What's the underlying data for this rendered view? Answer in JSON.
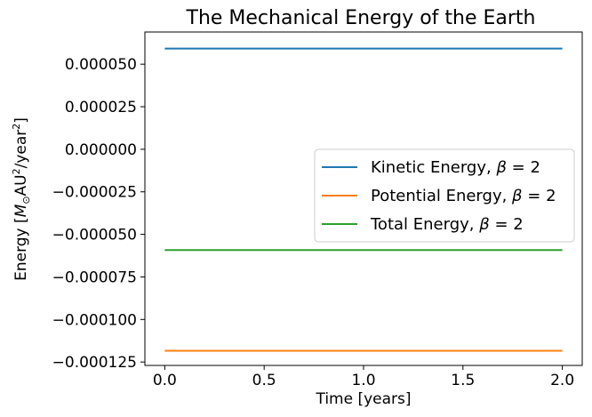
{
  "chart_data": {
    "type": "line",
    "title": "The Mechanical Energy of the Earth",
    "xlabel": "Time [years]",
    "ylabel_parts": {
      "prefix": "Energy [",
      "msym": "M",
      "msub": "⊙",
      "unit1": "AU",
      "sup1": "2",
      "unit2": "/year",
      "sup2": "2",
      "suffix": "]"
    },
    "xlim": [
      -0.1,
      2.1
    ],
    "ylim": [
      -0.000127,
      6.89e-05
    ],
    "xticks": [
      0.0,
      0.5,
      1.0,
      1.5,
      2.0
    ],
    "xtick_labels": [
      "0.0",
      "0.5",
      "1.0",
      "1.5",
      "2.0"
    ],
    "yticks": [
      5e-05,
      2.5e-05,
      0.0,
      -2.5e-05,
      -5e-05,
      -7.5e-05,
      -0.0001,
      -0.000125
    ],
    "ytick_labels": [
      "0.000050",
      "0.000025",
      "0.000000",
      "−0.000025",
      "−0.000050",
      "−0.000075",
      "−0.000100",
      "−0.000125"
    ],
    "grid": false,
    "legend_position": "center-right",
    "series": [
      {
        "name": "Kinetic Energy, β = 2",
        "name_text": "Kinetic Energy, ",
        "color": "#1f77b4",
        "x": [
          0.0,
          2.0
        ],
        "y": [
          5.92e-05,
          5.92e-05
        ]
      },
      {
        "name": "Potential Energy, β = 2",
        "name_text": "Potential Energy, ",
        "color": "#ff7f0e",
        "x": [
          0.0,
          2.0
        ],
        "y": [
          -0.0001184,
          -0.0001184
        ]
      },
      {
        "name": "Total Energy, β = 2",
        "name_text": "Total Energy, ",
        "color": "#2ca02c",
        "x": [
          0.0,
          2.0
        ],
        "y": [
          -5.92e-05,
          -5.92e-05
        ]
      }
    ],
    "legend_beta": {
      "sym": "β",
      "eq": " = 2"
    }
  }
}
